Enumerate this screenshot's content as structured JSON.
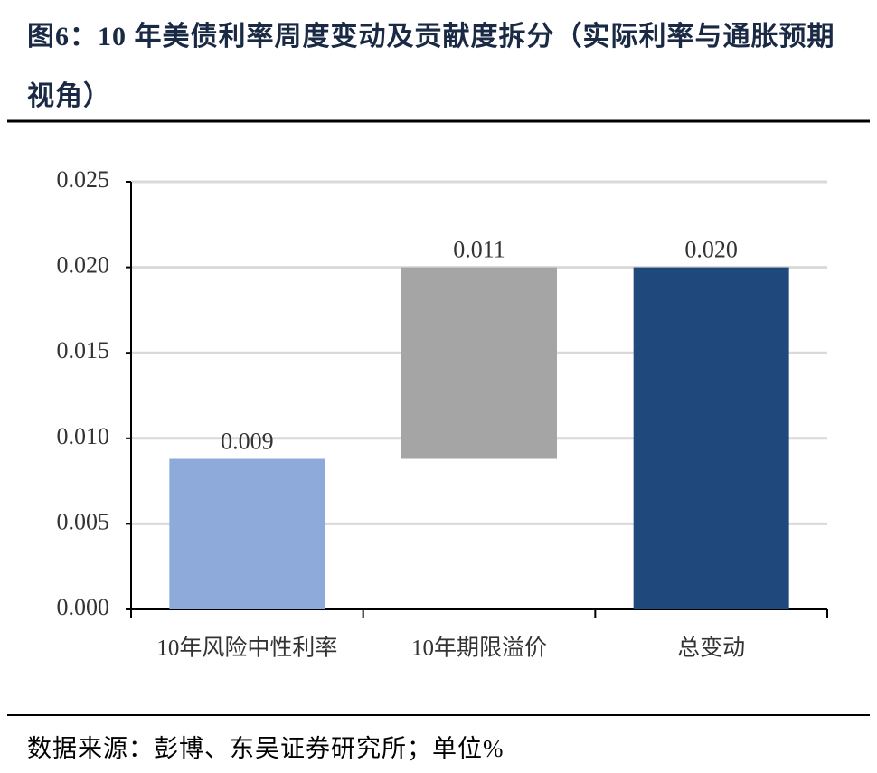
{
  "chart_data": {
    "type": "waterfall",
    "title": "图6：10 年美债利率周度变动及贡献度拆分（实际利率与通胀预期视角）",
    "source": "数据来源：彭博、东吴证券研究所；单位%",
    "categories": [
      "10年风险中性利率",
      "10年期限溢价",
      "总变动"
    ],
    "values": [
      0.0088,
      0.0112,
      0.02
    ],
    "value_labels": [
      "0.009",
      "0.011",
      "0.020"
    ],
    "is_total": [
      false,
      false,
      true
    ],
    "colors": [
      "#8eaadb",
      "#a5a5a5",
      "#1f497d"
    ],
    "ylim": [
      0,
      0.025
    ],
    "yticks": [
      {
        "value": 0,
        "label": "0.000"
      },
      0.005,
      {
        "value": 0.01,
        "label": "0.010"
      },
      0.015,
      {
        "value": 0.02,
        "label": "0.020"
      },
      0.025
    ],
    "grid": true
  }
}
